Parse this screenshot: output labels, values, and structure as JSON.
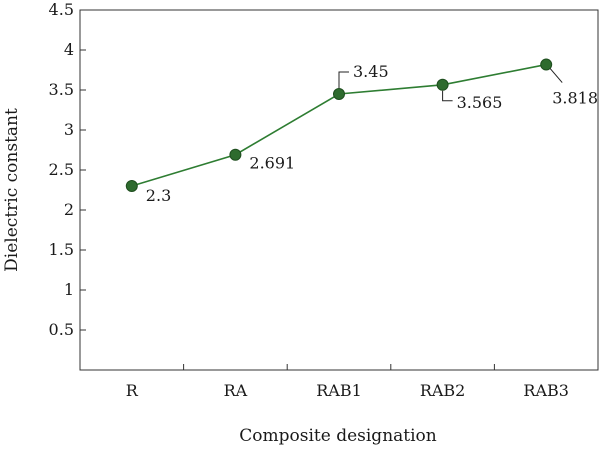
{
  "chart_data": {
    "type": "line",
    "xlabel": "Composite designation",
    "ylabel": "Dielectric constant",
    "categories": [
      "R",
      "RA",
      "RAB1",
      "RAB2",
      "RAB3"
    ],
    "values": [
      2.3,
      2.691,
      3.45,
      3.565,
      3.818
    ],
    "data_labels": [
      "2.3",
      "2.691",
      "3.45",
      "3.565",
      "3.818"
    ],
    "ylim": [
      0,
      4.5
    ],
    "yticks": [
      0.5,
      1,
      1.5,
      2,
      2.5,
      3,
      3.5,
      4,
      4.5
    ],
    "ytick_labels": [
      "0.5",
      "1",
      "1.5",
      "2",
      "2.5",
      "3",
      "3.5",
      "4",
      "4.5"
    ],
    "grid": false,
    "colors": {
      "line": "#2e7d32",
      "marker": "#2e6b2e",
      "axis": "#333333"
    }
  }
}
